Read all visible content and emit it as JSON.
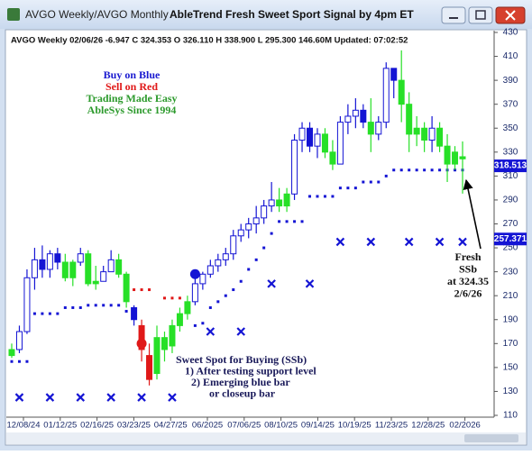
{
  "window_title": "AVGO Weekly/AVGO Monthly",
  "chart_data": {
    "type": "candlestick",
    "title": "AbleTrend Fresh Sweet Sport Signal by 4pm ET",
    "info": "AVGO  Weekly 02/06/26 -6.947 C 324.353 O 326.110 H 338.900 L 295.300 146.60M Updated: 07:02:52",
    "colors": {
      "blue": "#1414d4",
      "green": "#27e027",
      "red": "#e01818"
    },
    "ylim": [
      110,
      430
    ],
    "yticks": [
      110,
      130,
      150,
      170,
      190,
      210,
      230,
      250,
      270,
      290,
      310,
      330,
      350,
      370,
      390,
      410,
      430
    ],
    "x_labels": [
      "12/08/24",
      "01/12/25",
      "02/16/25",
      "03/23/25",
      "04/27/25",
      "06/2025",
      "07/06/25",
      "08/10/25",
      "09/14/25",
      "10/19/25",
      "11/23/25",
      "12/28/25",
      "02/2026"
    ],
    "candles": [
      [
        160,
        170,
        158,
        165
      ],
      [
        165,
        185,
        162,
        180
      ],
      [
        180,
        232,
        178,
        225
      ],
      [
        225,
        250,
        215,
        240
      ],
      [
        240,
        252,
        225,
        232
      ],
      [
        232,
        248,
        225,
        245
      ],
      [
        245,
        250,
        232,
        238
      ],
      [
        238,
        245,
        222,
        225
      ],
      [
        225,
        240,
        218,
        238
      ],
      [
        238,
        250,
        235,
        245
      ],
      [
        245,
        248,
        218,
        220
      ],
      [
        220,
        235,
        215,
        222
      ],
      [
        222,
        235,
        222,
        230
      ],
      [
        230,
        248,
        230,
        240
      ],
      [
        240,
        245,
        225,
        228
      ],
      [
        228,
        230,
        200,
        205
      ],
      [
        200,
        202,
        185,
        190
      ],
      [
        185,
        190,
        155,
        165
      ],
      [
        160,
        170,
        135,
        140
      ],
      [
        145,
        185,
        140,
        175
      ],
      [
        175,
        180,
        155,
        165
      ],
      [
        168,
        190,
        162,
        185
      ],
      [
        185,
        200,
        180,
        195
      ],
      [
        195,
        210,
        190,
        205
      ],
      [
        205,
        225,
        202,
        220
      ],
      [
        220,
        230,
        215,
        228
      ],
      [
        228,
        240,
        225,
        235
      ],
      [
        235,
        245,
        230,
        240
      ],
      [
        240,
        250,
        235,
        245
      ],
      [
        245,
        265,
        240,
        260
      ],
      [
        260,
        270,
        255,
        265
      ],
      [
        265,
        275,
        258,
        270
      ],
      [
        270,
        285,
        262,
        275
      ],
      [
        275,
        290,
        270,
        285
      ],
      [
        285,
        305,
        280,
        290
      ],
      [
        290,
        300,
        280,
        285
      ],
      [
        285,
        300,
        280,
        295
      ],
      [
        295,
        345,
        290,
        340
      ],
      [
        340,
        355,
        330,
        350
      ],
      [
        350,
        355,
        330,
        335
      ],
      [
        335,
        350,
        325,
        345
      ],
      [
        345,
        350,
        325,
        330
      ],
      [
        330,
        340,
        315,
        320
      ],
      [
        320,
        360,
        320,
        355
      ],
      [
        355,
        370,
        345,
        360
      ],
      [
        360,
        375,
        350,
        365
      ],
      [
        365,
        370,
        350,
        355
      ],
      [
        355,
        375,
        330,
        345
      ],
      [
        345,
        360,
        340,
        355
      ],
      [
        355,
        405,
        350,
        400
      ],
      [
        400,
        400,
        375,
        390
      ],
      [
        390,
        415,
        355,
        370
      ],
      [
        370,
        380,
        330,
        345
      ],
      [
        345,
        360,
        335,
        350
      ],
      [
        350,
        355,
        330,
        340
      ],
      [
        340,
        360,
        330,
        350
      ],
      [
        350,
        355,
        330,
        335
      ],
      [
        335,
        345,
        305,
        320
      ],
      [
        320,
        335,
        315,
        330
      ],
      [
        326.11,
        338.9,
        295.3,
        324.353
      ]
    ],
    "bar_colors": [
      "green",
      "blue",
      "blue",
      "blue",
      "blue",
      "blue",
      "blue",
      "green",
      "green",
      "blue",
      "green",
      "green",
      "blue",
      "blue",
      "green",
      "green",
      "blue",
      "red",
      "red",
      "green",
      "green",
      "green",
      "green",
      "green",
      "blue",
      "blue",
      "blue",
      "blue",
      "blue",
      "blue",
      "blue",
      "blue",
      "blue",
      "blue",
      "blue",
      "green",
      "green",
      "blue",
      "blue",
      "blue",
      "blue",
      "green",
      "green",
      "blue",
      "blue",
      "blue",
      "blue",
      "green",
      "blue",
      "blue",
      "blue",
      "green",
      "green",
      "green",
      "green",
      "blue",
      "green",
      "green",
      "green",
      "green"
    ],
    "blue_stop": [
      155,
      155,
      155,
      195,
      195,
      195,
      195,
      200,
      200,
      200,
      202,
      202,
      202,
      202,
      202,
      197,
      null,
      null,
      null,
      null,
      null,
      null,
      null,
      null,
      185,
      187,
      200,
      205,
      210,
      215,
      222,
      232,
      240,
      250,
      262,
      272,
      272,
      272,
      272,
      293,
      293,
      293,
      293,
      300,
      300,
      300,
      305,
      305,
      305,
      310,
      315,
      315,
      315,
      315,
      315,
      315,
      315,
      315,
      315,
      315
    ],
    "red_stop": [
      null,
      null,
      null,
      null,
      null,
      null,
      null,
      null,
      null,
      null,
      null,
      null,
      null,
      null,
      null,
      null,
      215,
      215,
      215,
      null,
      208,
      208,
      208,
      null,
      null,
      null,
      null,
      null,
      null,
      null,
      null,
      null,
      null,
      null,
      null,
      null,
      null,
      null,
      null,
      null,
      null,
      null,
      null,
      null,
      null,
      null,
      null,
      null,
      null,
      null,
      null,
      null,
      null,
      null,
      null,
      null,
      null,
      null,
      null,
      null
    ],
    "x_marks": [
      null,
      125,
      null,
      null,
      null,
      125,
      null,
      null,
      null,
      125,
      null,
      null,
      null,
      125,
      null,
      null,
      null,
      125,
      null,
      null,
      null,
      125,
      null,
      null,
      null,
      null,
      180,
      null,
      null,
      null,
      180,
      null,
      null,
      null,
      220,
      null,
      null,
      null,
      null,
      220,
      null,
      null,
      null,
      255,
      null,
      null,
      null,
      255,
      null,
      null,
      null,
      null,
      255,
      null,
      null,
      null,
      255,
      null,
      null,
      255
    ],
    "sell_signal": [
      null,
      null,
      null,
      null,
      null,
      null,
      null,
      null,
      null,
      null,
      null,
      null,
      null,
      null,
      null,
      null,
      null,
      170,
      null,
      null,
      null,
      null,
      null,
      null,
      null,
      null,
      null,
      null,
      null,
      null,
      null,
      null,
      null,
      null,
      null,
      null,
      null,
      null,
      null,
      null,
      null,
      null,
      null,
      null,
      null,
      null,
      null,
      null,
      null,
      null,
      null,
      null,
      null,
      null,
      null,
      null,
      null,
      null,
      null,
      null
    ],
    "buy_signal": [
      null,
      null,
      null,
      null,
      null,
      null,
      null,
      null,
      null,
      null,
      null,
      null,
      null,
      null,
      null,
      null,
      null,
      null,
      null,
      null,
      null,
      null,
      null,
      null,
      228,
      null,
      null,
      null,
      null,
      null,
      null,
      null,
      null,
      null,
      null,
      null,
      null,
      null,
      null,
      null,
      null,
      null,
      null,
      null,
      null,
      null,
      null,
      null,
      null,
      null,
      null,
      null,
      null,
      null,
      null,
      null,
      null,
      null,
      null,
      null
    ],
    "price_flags": [
      {
        "value": 318.513,
        "color": "#1414d4"
      },
      {
        "value": 257.371,
        "color": "#1414d4"
      }
    ],
    "legend_notes": [
      {
        "text": "Buy on Blue",
        "color": "#1a1ad0"
      },
      {
        "text": "Sell on Red",
        "color": "#e01818"
      },
      {
        "text": "Trading Made Easy",
        "color": "#2c9a2c"
      },
      {
        "text": "AbleSys Since 1994",
        "color": "#2c9a2c"
      }
    ],
    "sweet_spot_notes": [
      "Sweet Spot for Buying (SSb)",
      "1) After testing support level",
      "2) Emerging blue bar",
      "or closeup bar"
    ],
    "fresh_notes": [
      "Fresh",
      "SSb",
      "at 324.35",
      "2/6/26"
    ]
  }
}
